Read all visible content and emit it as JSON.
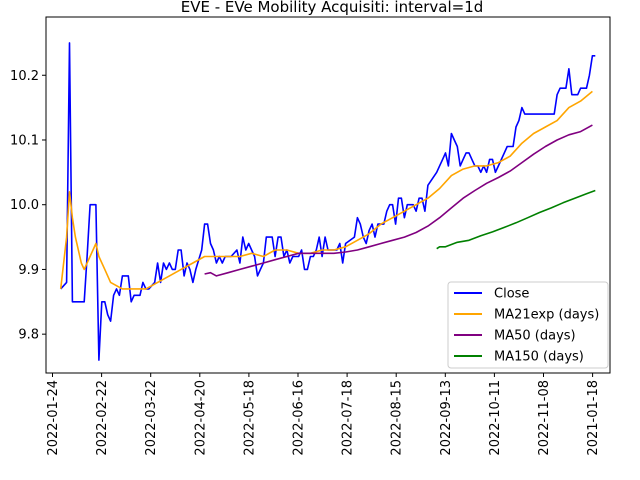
{
  "chart_data": {
    "type": "line",
    "title": "EVE - EVe Mobility Acquisiti: interval=1d",
    "xlabel": "",
    "ylabel": "",
    "x_tick_labels": [
      "2022-01-24",
      "2022-02-22",
      "2022-03-22",
      "2022-04-20",
      "2022-05-18",
      "2022-06-16",
      "2022-07-18",
      "2022-08-15",
      "2022-09-13",
      "2022-10-11",
      "2022-11-08",
      "2021-01-18"
    ],
    "y_ticks": [
      9.8,
      9.9,
      10.0,
      10.1,
      10.2
    ],
    "ylim": [
      9.74,
      10.29
    ],
    "grid": false,
    "legend_position": "lower-right",
    "series": [
      {
        "name": "Close",
        "color": "#0000ff",
        "points": [
          [
            5,
            9.87
          ],
          [
            7,
            9.88
          ],
          [
            8,
            10.25
          ],
          [
            9,
            9.85
          ],
          [
            10,
            9.85
          ],
          [
            13,
            9.85
          ],
          [
            14,
            9.92
          ],
          [
            15,
            10.0
          ],
          [
            17,
            10.0
          ],
          [
            18,
            9.76
          ],
          [
            19,
            9.85
          ],
          [
            20,
            9.85
          ],
          [
            21,
            9.83
          ],
          [
            22,
            9.82
          ],
          [
            23,
            9.86
          ],
          [
            24,
            9.87
          ],
          [
            25,
            9.86
          ],
          [
            26,
            9.89
          ],
          [
            28,
            9.89
          ],
          [
            29,
            9.85
          ],
          [
            30,
            9.86
          ],
          [
            32,
            9.86
          ],
          [
            33,
            9.88
          ],
          [
            34,
            9.87
          ],
          [
            35,
            9.87
          ],
          [
            37,
            9.88
          ],
          [
            38,
            9.91
          ],
          [
            39,
            9.88
          ],
          [
            40,
            9.91
          ],
          [
            41,
            9.9
          ],
          [
            42,
            9.91
          ],
          [
            43,
            9.9
          ],
          [
            44,
            9.9
          ],
          [
            45,
            9.93
          ],
          [
            46,
            9.93
          ],
          [
            47,
            9.89
          ],
          [
            48,
            9.91
          ],
          [
            49,
            9.9
          ],
          [
            50,
            9.88
          ],
          [
            51,
            9.9
          ],
          [
            53,
            9.93
          ],
          [
            54,
            9.97
          ],
          [
            55,
            9.97
          ],
          [
            56,
            9.94
          ],
          [
            57,
            9.93
          ],
          [
            58,
            9.91
          ],
          [
            59,
            9.92
          ],
          [
            60,
            9.91
          ],
          [
            61,
            9.92
          ],
          [
            63,
            9.92
          ],
          [
            65,
            9.93
          ],
          [
            66,
            9.91
          ],
          [
            67,
            9.95
          ],
          [
            68,
            9.93
          ],
          [
            69,
            9.94
          ],
          [
            70,
            9.93
          ],
          [
            71,
            9.92
          ],
          [
            72,
            9.89
          ],
          [
            73,
            9.9
          ],
          [
            74,
            9.91
          ],
          [
            75,
            9.95
          ],
          [
            77,
            9.95
          ],
          [
            78,
            9.92
          ],
          [
            79,
            9.95
          ],
          [
            80,
            9.95
          ],
          [
            81,
            9.92
          ],
          [
            82,
            9.93
          ],
          [
            83,
            9.91
          ],
          [
            84,
            9.92
          ],
          [
            86,
            9.92
          ],
          [
            87,
            9.93
          ],
          [
            88,
            9.9
          ],
          [
            89,
            9.9
          ],
          [
            90,
            9.92
          ],
          [
            91,
            9.92
          ],
          [
            92,
            9.93
          ],
          [
            93,
            9.95
          ],
          [
            94,
            9.92
          ],
          [
            95,
            9.95
          ],
          [
            96,
            9.93
          ],
          [
            99,
            9.93
          ],
          [
            100,
            9.94
          ],
          [
            101,
            9.91
          ],
          [
            102,
            9.94
          ],
          [
            105,
            9.95
          ],
          [
            106,
            9.98
          ],
          [
            107,
            9.97
          ],
          [
            108,
            9.95
          ],
          [
            109,
            9.94
          ],
          [
            110,
            9.96
          ],
          [
            111,
            9.97
          ],
          [
            112,
            9.95
          ],
          [
            113,
            9.97
          ],
          [
            115,
            9.97
          ],
          [
            116,
            9.99
          ],
          [
            117,
            10.0
          ],
          [
            118,
            10.0
          ],
          [
            119,
            9.97
          ],
          [
            120,
            10.01
          ],
          [
            121,
            10.01
          ],
          [
            122,
            9.98
          ],
          [
            123,
            10.0
          ],
          [
            124,
            10.0
          ],
          [
            125,
            10.0
          ],
          [
            126,
            9.99
          ],
          [
            127,
            10.01
          ],
          [
            128,
            10.01
          ],
          [
            129,
            9.99
          ],
          [
            130,
            10.03
          ],
          [
            133,
            10.05
          ],
          [
            134,
            10.06
          ],
          [
            135,
            10.07
          ],
          [
            136,
            10.08
          ],
          [
            137,
            10.06
          ],
          [
            138,
            10.11
          ],
          [
            139,
            10.1
          ],
          [
            140,
            10.09
          ],
          [
            141,
            10.06
          ],
          [
            142,
            10.07
          ],
          [
            143,
            10.08
          ],
          [
            144,
            10.08
          ],
          [
            145,
            10.07
          ],
          [
            146,
            10.06
          ],
          [
            147,
            10.06
          ],
          [
            148,
            10.05
          ],
          [
            149,
            10.06
          ],
          [
            150,
            10.05
          ],
          [
            151,
            10.07
          ],
          [
            152,
            10.07
          ],
          [
            153,
            10.05
          ],
          [
            154,
            10.06
          ],
          [
            156,
            10.08
          ],
          [
            157,
            10.09
          ],
          [
            159,
            10.09
          ],
          [
            160,
            10.12
          ],
          [
            161,
            10.13
          ],
          [
            162,
            10.15
          ],
          [
            163,
            10.14
          ],
          [
            165,
            10.14
          ],
          [
            173,
            10.14
          ],
          [
            174,
            10.17
          ],
          [
            175,
            10.18
          ],
          [
            177,
            10.18
          ],
          [
            178,
            10.21
          ],
          [
            179,
            10.17
          ],
          [
            181,
            10.17
          ],
          [
            182,
            10.18
          ],
          [
            184,
            10.18
          ],
          [
            185,
            10.2
          ],
          [
            186,
            10.23
          ],
          [
            187,
            10.23
          ]
        ]
      },
      {
        "name": "MA21exp (days)",
        "color": "#ffa500",
        "points": [
          [
            5,
            9.87
          ],
          [
            7,
            9.95
          ],
          [
            8,
            10.02
          ],
          [
            9,
            9.98
          ],
          [
            10,
            9.95
          ],
          [
            12,
            9.91
          ],
          [
            13,
            9.9
          ],
          [
            14,
            9.91
          ],
          [
            16,
            9.93
          ],
          [
            17,
            9.94
          ],
          [
            18,
            9.92
          ],
          [
            20,
            9.9
          ],
          [
            22,
            9.88
          ],
          [
            26,
            9.87
          ],
          [
            30,
            9.87
          ],
          [
            34,
            9.87
          ],
          [
            38,
            9.88
          ],
          [
            42,
            9.89
          ],
          [
            46,
            9.9
          ],
          [
            50,
            9.91
          ],
          [
            54,
            9.92
          ],
          [
            58,
            9.92
          ],
          [
            62,
            9.92
          ],
          [
            66,
            9.92
          ],
          [
            70,
            9.925
          ],
          [
            74,
            9.92
          ],
          [
            78,
            9.93
          ],
          [
            82,
            9.93
          ],
          [
            86,
            9.925
          ],
          [
            90,
            9.925
          ],
          [
            94,
            9.93
          ],
          [
            98,
            9.93
          ],
          [
            102,
            9.935
          ],
          [
            106,
            9.945
          ],
          [
            110,
            9.955
          ],
          [
            114,
            9.97
          ],
          [
            118,
            9.98
          ],
          [
            122,
            9.99
          ],
          [
            126,
            10.0
          ],
          [
            130,
            10.01
          ],
          [
            134,
            10.025
          ],
          [
            138,
            10.045
          ],
          [
            142,
            10.055
          ],
          [
            146,
            10.06
          ],
          [
            150,
            10.06
          ],
          [
            154,
            10.065
          ],
          [
            158,
            10.075
          ],
          [
            162,
            10.095
          ],
          [
            166,
            10.11
          ],
          [
            170,
            10.12
          ],
          [
            174,
            10.13
          ],
          [
            178,
            10.15
          ],
          [
            182,
            10.16
          ],
          [
            186,
            10.175
          ]
        ]
      },
      {
        "name": "MA50 (days)",
        "color": "#800080",
        "points": [
          [
            54,
            9.893
          ],
          [
            56,
            9.895
          ],
          [
            58,
            9.89
          ],
          [
            62,
            9.895
          ],
          [
            66,
            9.9
          ],
          [
            70,
            9.905
          ],
          [
            74,
            9.91
          ],
          [
            78,
            9.915
          ],
          [
            82,
            9.92
          ],
          [
            86,
            9.925
          ],
          [
            90,
            9.925
          ],
          [
            94,
            9.925
          ],
          [
            98,
            9.925
          ],
          [
            102,
            9.927
          ],
          [
            106,
            9.93
          ],
          [
            110,
            9.935
          ],
          [
            114,
            9.94
          ],
          [
            118,
            9.945
          ],
          [
            122,
            9.95
          ],
          [
            126,
            9.957
          ],
          [
            130,
            9.967
          ],
          [
            134,
            9.98
          ],
          [
            138,
            9.995
          ],
          [
            142,
            10.01
          ],
          [
            146,
            10.022
          ],
          [
            150,
            10.033
          ],
          [
            154,
            10.042
          ],
          [
            158,
            10.052
          ],
          [
            162,
            10.065
          ],
          [
            166,
            10.078
          ],
          [
            170,
            10.09
          ],
          [
            174,
            10.1
          ],
          [
            178,
            10.108
          ],
          [
            182,
            10.113
          ],
          [
            186,
            10.123
          ]
        ]
      },
      {
        "name": "MA150 (days)",
        "color": "#008000",
        "points": [
          [
            133,
            9.932
          ],
          [
            134,
            9.935
          ],
          [
            136,
            9.935
          ],
          [
            140,
            9.942
          ],
          [
            144,
            9.945
          ],
          [
            148,
            9.952
          ],
          [
            152,
            9.958
          ],
          [
            156,
            9.965
          ],
          [
            160,
            9.972
          ],
          [
            164,
            9.98
          ],
          [
            168,
            9.988
          ],
          [
            172,
            9.995
          ],
          [
            176,
            10.003
          ],
          [
            180,
            10.01
          ],
          [
            184,
            10.017
          ],
          [
            187,
            10.022
          ]
        ]
      }
    ]
  }
}
